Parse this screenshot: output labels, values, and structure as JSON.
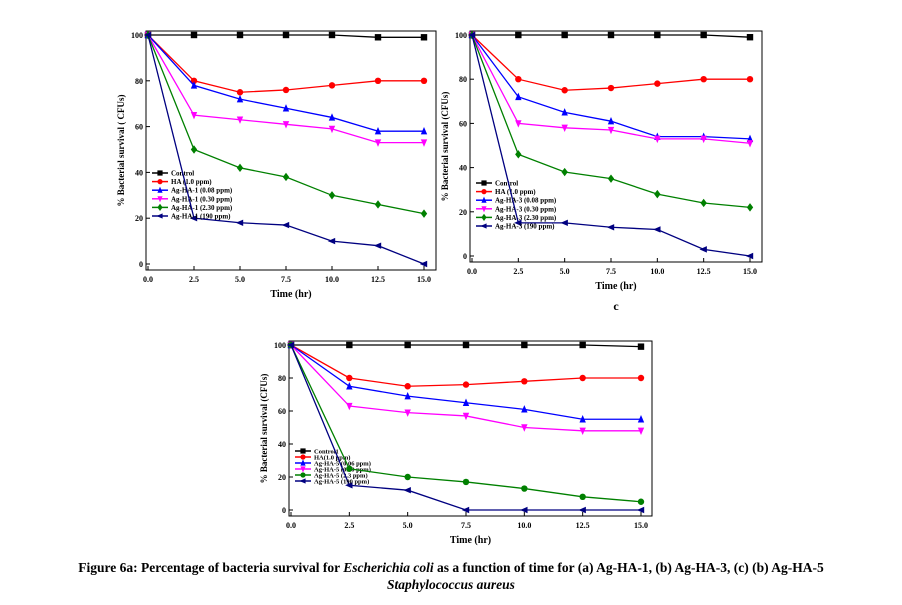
{
  "chart_data": [
    {
      "type": "line",
      "xlabel": "Time (hr)",
      "ylabel": "% Bacterial survival ( CFUs)",
      "xlim": [
        0,
        15
      ],
      "ylim": [
        0,
        100
      ],
      "x": [
        0,
        2.5,
        5,
        7.5,
        10,
        12.5,
        15
      ],
      "xticks": [
        "0.0",
        "2.5",
        "5.0",
        "7.5",
        "10.0",
        "12.5",
        "15.0"
      ],
      "yticks": [
        "0",
        "20",
        "40",
        "60",
        "80",
        "100"
      ],
      "legend": "bottom-left",
      "series": [
        {
          "name": "Control",
          "color": "#000000",
          "marker": "square",
          "values": [
            100,
            100,
            100,
            100,
            100,
            99,
            99
          ]
        },
        {
          "name": "HA (1.0 ppm)",
          "color": "#ff0000",
          "marker": "circle",
          "values": [
            100,
            80,
            75,
            76,
            78,
            80,
            80
          ]
        },
        {
          "name": "Ag-HA-1 (0.08 ppm)",
          "color": "#0000ff",
          "marker": "triangle-up",
          "values": [
            100,
            78,
            72,
            68,
            64,
            58,
            58
          ]
        },
        {
          "name": "Ag-HA-1 (0.30 ppm)",
          "color": "#ff00ff",
          "marker": "triangle-down",
          "values": [
            100,
            65,
            63,
            61,
            59,
            53,
            53
          ]
        },
        {
          "name": "Ag-HA-1 (2.30 ppm)",
          "color": "#008000",
          "marker": "diamond",
          "values": [
            100,
            50,
            42,
            38,
            30,
            26,
            22
          ]
        },
        {
          "name": "Ag-HA-1 (190 ppm)",
          "color": "#000080",
          "marker": "triangle-left",
          "values": [
            100,
            20,
            18,
            17,
            10,
            8,
            0
          ]
        }
      ]
    },
    {
      "type": "line",
      "xlabel": "Time (hr)",
      "ylabel": "% Bacterial survival (CFUs)",
      "xlim": [
        0,
        15
      ],
      "ylim": [
        0,
        100
      ],
      "panel_label": "c",
      "x": [
        0,
        2.5,
        5,
        7.5,
        10,
        12.5,
        15
      ],
      "xticks": [
        "0.0",
        "2.5",
        "5.0",
        "7.5",
        "10.0",
        "12.5",
        "15.0"
      ],
      "yticks": [
        "0",
        "20",
        "40",
        "60",
        "80",
        "100"
      ],
      "legend": "bottom-left",
      "series": [
        {
          "name": "Control",
          "color": "#000000",
          "marker": "square",
          "values": [
            100,
            100,
            100,
            100,
            100,
            100,
            99
          ]
        },
        {
          "name": "HA (1.0 ppm)",
          "color": "#ff0000",
          "marker": "circle",
          "values": [
            100,
            80,
            75,
            76,
            78,
            80,
            80
          ]
        },
        {
          "name": "Ag-HA-3 (0.08 ppm)",
          "color": "#0000ff",
          "marker": "triangle-up",
          "values": [
            100,
            72,
            65,
            61,
            54,
            54,
            53
          ]
        },
        {
          "name": "Ag-HA-3 (0.30 ppm)",
          "color": "#ff00ff",
          "marker": "triangle-down",
          "values": [
            100,
            60,
            58,
            57,
            53,
            53,
            51
          ]
        },
        {
          "name": "Ag-HA-3 (2.30 ppm)",
          "color": "#008000",
          "marker": "diamond",
          "values": [
            100,
            46,
            38,
            35,
            28,
            24,
            22
          ]
        },
        {
          "name": "Ag-HA-3 (190 ppm)",
          "color": "#000080",
          "marker": "triangle-left",
          "values": [
            100,
            15,
            15,
            13,
            12,
            3,
            0
          ]
        }
      ]
    },
    {
      "type": "line",
      "xlabel": "Time (hr)",
      "ylabel": "% Bacterial survival (CFUs)",
      "xlim": [
        0,
        15
      ],
      "ylim": [
        0,
        100
      ],
      "x": [
        0,
        2.5,
        5,
        7.5,
        10,
        12.5,
        15
      ],
      "xticks": [
        "0.0",
        "2.5",
        "5.0",
        "7.5",
        "10.0",
        "12.5",
        "15.0"
      ],
      "yticks": [
        "0",
        "20",
        "40",
        "60",
        "80",
        "100"
      ],
      "legend": "bottom-left",
      "series": [
        {
          "name": "Control1",
          "color": "#000000",
          "marker": "square",
          "values": [
            100,
            100,
            100,
            100,
            100,
            100,
            99
          ]
        },
        {
          "name": "HA(1.0 ppm)",
          "color": "#ff0000",
          "marker": "circle",
          "values": [
            100,
            80,
            75,
            76,
            78,
            80,
            80
          ]
        },
        {
          "name": "Ag-HA-5 (0.06 ppm)",
          "color": "#0000ff",
          "marker": "triangle-up",
          "values": [
            100,
            75,
            69,
            65,
            61,
            55,
            55
          ]
        },
        {
          "name": "Ag-HA-5 (0.30 ppm)",
          "color": "#ff00ff",
          "marker": "triangle-down",
          "values": [
            100,
            63,
            59,
            57,
            50,
            48,
            48
          ]
        },
        {
          "name": "Ag-HA-5 (2.3 ppm)",
          "color": "#008000",
          "marker": "circle",
          "values": [
            100,
            25,
            20,
            17,
            13,
            8,
            5
          ]
        },
        {
          "name": "Ag-HA-5 (190 ppm)",
          "color": "#000080",
          "marker": "triangle-left",
          "values": [
            100,
            15,
            12,
            0,
            0,
            0,
            0
          ]
        }
      ]
    }
  ],
  "caption": {
    "prefix": "Figure 6a: Percentage of bacteria survival for ",
    "organism1": "Escherichia coli",
    "middle": " as a function of time for (a) Ag-HA-1, (b) Ag-HA-3, (c) (b) Ag-HA-5",
    "organism2": "Staphylococcus aureus"
  }
}
